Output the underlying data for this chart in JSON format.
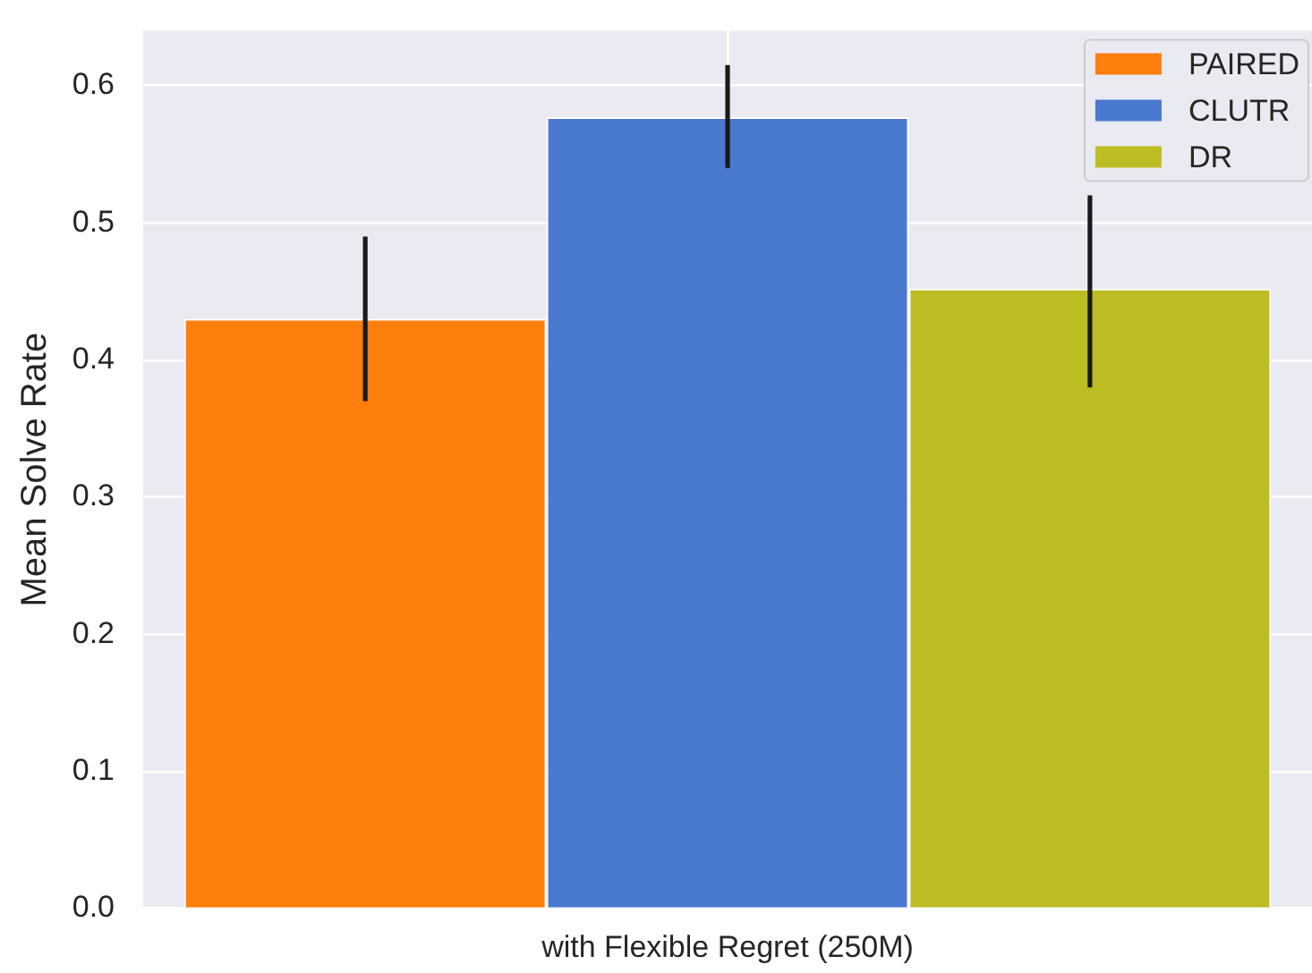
{
  "chart_data": {
    "type": "bar",
    "categories": [
      "with Flexible Regret (250M)"
    ],
    "series": [
      {
        "name": "PAIRED",
        "color": "#ff7f0e",
        "values": [
          0.43
        ],
        "errors": [
          [
            0.37,
            0.49
          ]
        ]
      },
      {
        "name": "CLUTR",
        "color": "#4a79d0",
        "values": [
          0.577
        ],
        "errors": [
          [
            0.54,
            0.615
          ]
        ]
      },
      {
        "name": "DR",
        "color": "#bcbd22",
        "values": [
          0.452
        ],
        "errors": [
          [
            0.38,
            0.52
          ]
        ]
      }
    ],
    "ylabel": "Mean Solve Rate",
    "ylim": [
      0,
      0.64
    ],
    "yticks": [
      {
        "value": 0,
        "label": "0.0"
      },
      0.1,
      0.2,
      0.3,
      0.4,
      0.5,
      0.6
    ],
    "grid": true,
    "legend": "top right"
  }
}
